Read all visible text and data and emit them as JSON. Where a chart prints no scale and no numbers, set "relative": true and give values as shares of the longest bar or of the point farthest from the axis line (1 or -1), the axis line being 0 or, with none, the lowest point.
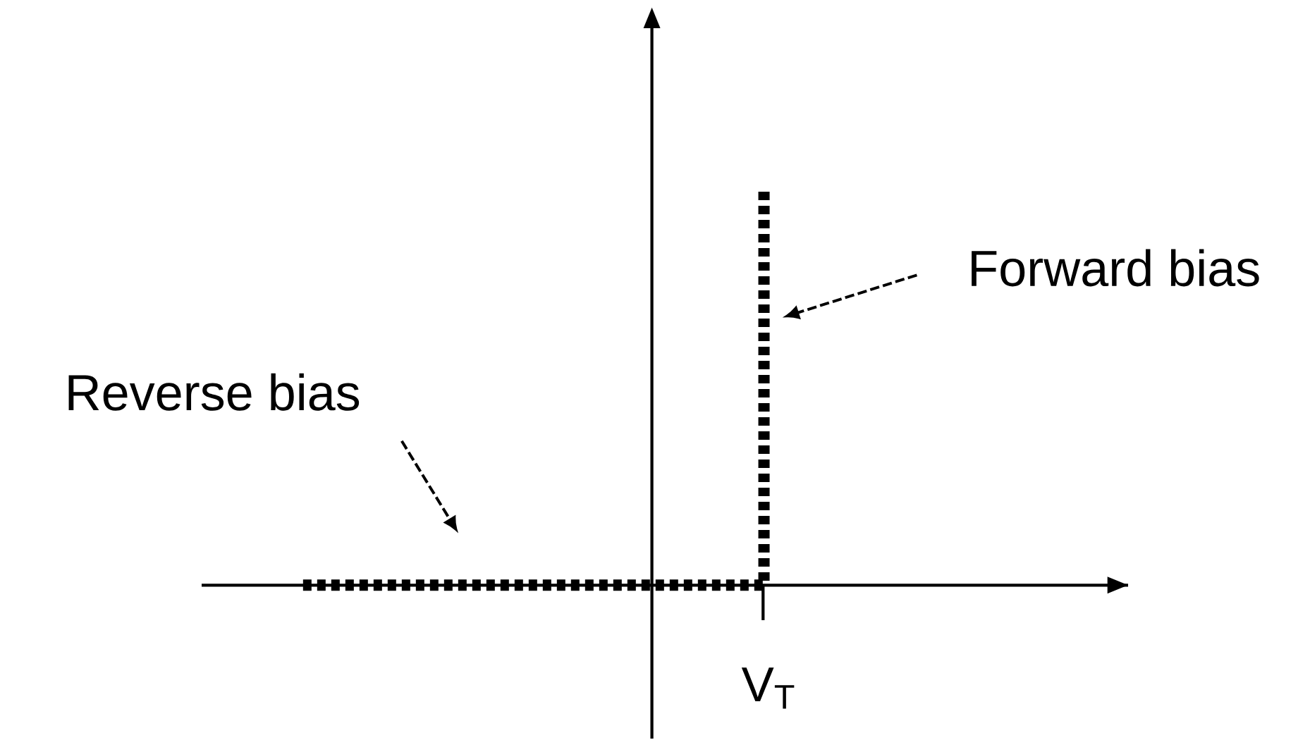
{
  "chart_data": {
    "type": "step",
    "relative": true,
    "categories": [
      null,
      null
    ],
    "series": [
      {
        "color": "#000000",
        "values": [
          0,
          1
        ]
      }
    ],
    "line_style": "dotted",
    "marker": "none",
    "annotations": [
      "Reverse bias",
      "Forward bias",
      "V$_{T}$"
    ]
  }
}
